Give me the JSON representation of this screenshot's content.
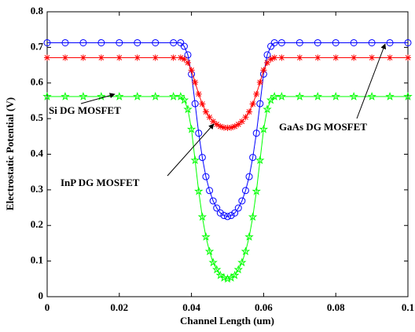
{
  "chart_data": {
    "type": "line",
    "x_label": "Channel Length (um)",
    "y_label": "Electrostatic Potential (V)",
    "x": [
      0,
      0.005,
      0.01,
      0.015,
      0.02,
      0.025,
      0.03,
      0.035,
      0.037,
      0.038,
      0.039,
      0.04,
      0.041,
      0.042,
      0.043,
      0.044,
      0.045,
      0.046,
      0.047,
      0.048,
      0.049,
      0.05,
      0.051,
      0.052,
      0.053,
      0.054,
      0.055,
      0.056,
      0.057,
      0.058,
      0.059,
      0.06,
      0.061,
      0.062,
      0.063,
      0.065,
      0.07,
      0.075,
      0.08,
      0.085,
      0.09,
      0.095,
      0.1
    ],
    "series": [
      {
        "color": "#0000ff",
        "marker": "circle",
        "values": [
          0.713,
          0.713,
          0.713,
          0.713,
          0.713,
          0.713,
          0.713,
          0.713,
          0.713,
          0.703,
          0.679,
          0.625,
          0.542,
          0.459,
          0.391,
          0.337,
          0.298,
          0.269,
          0.249,
          0.235,
          0.228,
          0.225,
          0.228,
          0.235,
          0.249,
          0.269,
          0.298,
          0.337,
          0.391,
          0.459,
          0.542,
          0.625,
          0.679,
          0.703,
          0.713,
          0.713,
          0.713,
          0.713,
          0.713,
          0.713,
          0.713,
          0.713,
          0.713
        ]
      },
      {
        "color": "#ff0000",
        "marker": "asterisk",
        "values": [
          0.671,
          0.671,
          0.671,
          0.671,
          0.671,
          0.671,
          0.671,
          0.671,
          0.671,
          0.667,
          0.657,
          0.636,
          0.602,
          0.569,
          0.541,
          0.519,
          0.504,
          0.492,
          0.484,
          0.478,
          0.475,
          0.474,
          0.475,
          0.478,
          0.484,
          0.492,
          0.504,
          0.519,
          0.541,
          0.569,
          0.602,
          0.636,
          0.657,
          0.667,
          0.671,
          0.671,
          0.671,
          0.671,
          0.671,
          0.671,
          0.671,
          0.671,
          0.671
        ]
      },
      {
        "color": "#00ff00",
        "marker": "pentagram",
        "values": [
          0.562,
          0.562,
          0.562,
          0.562,
          0.562,
          0.562,
          0.562,
          0.562,
          0.562,
          0.552,
          0.526,
          0.47,
          0.383,
          0.296,
          0.224,
          0.168,
          0.127,
          0.096,
          0.076,
          0.06,
          0.053,
          0.05,
          0.053,
          0.06,
          0.076,
          0.096,
          0.127,
          0.168,
          0.224,
          0.296,
          0.383,
          0.47,
          0.526,
          0.552,
          0.562,
          0.562,
          0.562,
          0.562,
          0.562,
          0.562,
          0.562,
          0.562,
          0.562
        ]
      }
    ],
    "annotations": [
      {
        "text": "Si DG MOSFET"
      },
      {
        "text": "InP DG MOSFET"
      },
      {
        "text": "GaAs DG MOSFET"
      }
    ],
    "xlim": [
      0,
      0.1
    ],
    "xticks": [
      0,
      0.02,
      0.04,
      0.06,
      0.08,
      0.1
    ],
    "ylim": [
      0,
      0.8
    ],
    "yticks": [
      0,
      0.1,
      0.2,
      0.3,
      0.4,
      0.5,
      0.6,
      0.7,
      0.8
    ],
    "grid": false
  }
}
